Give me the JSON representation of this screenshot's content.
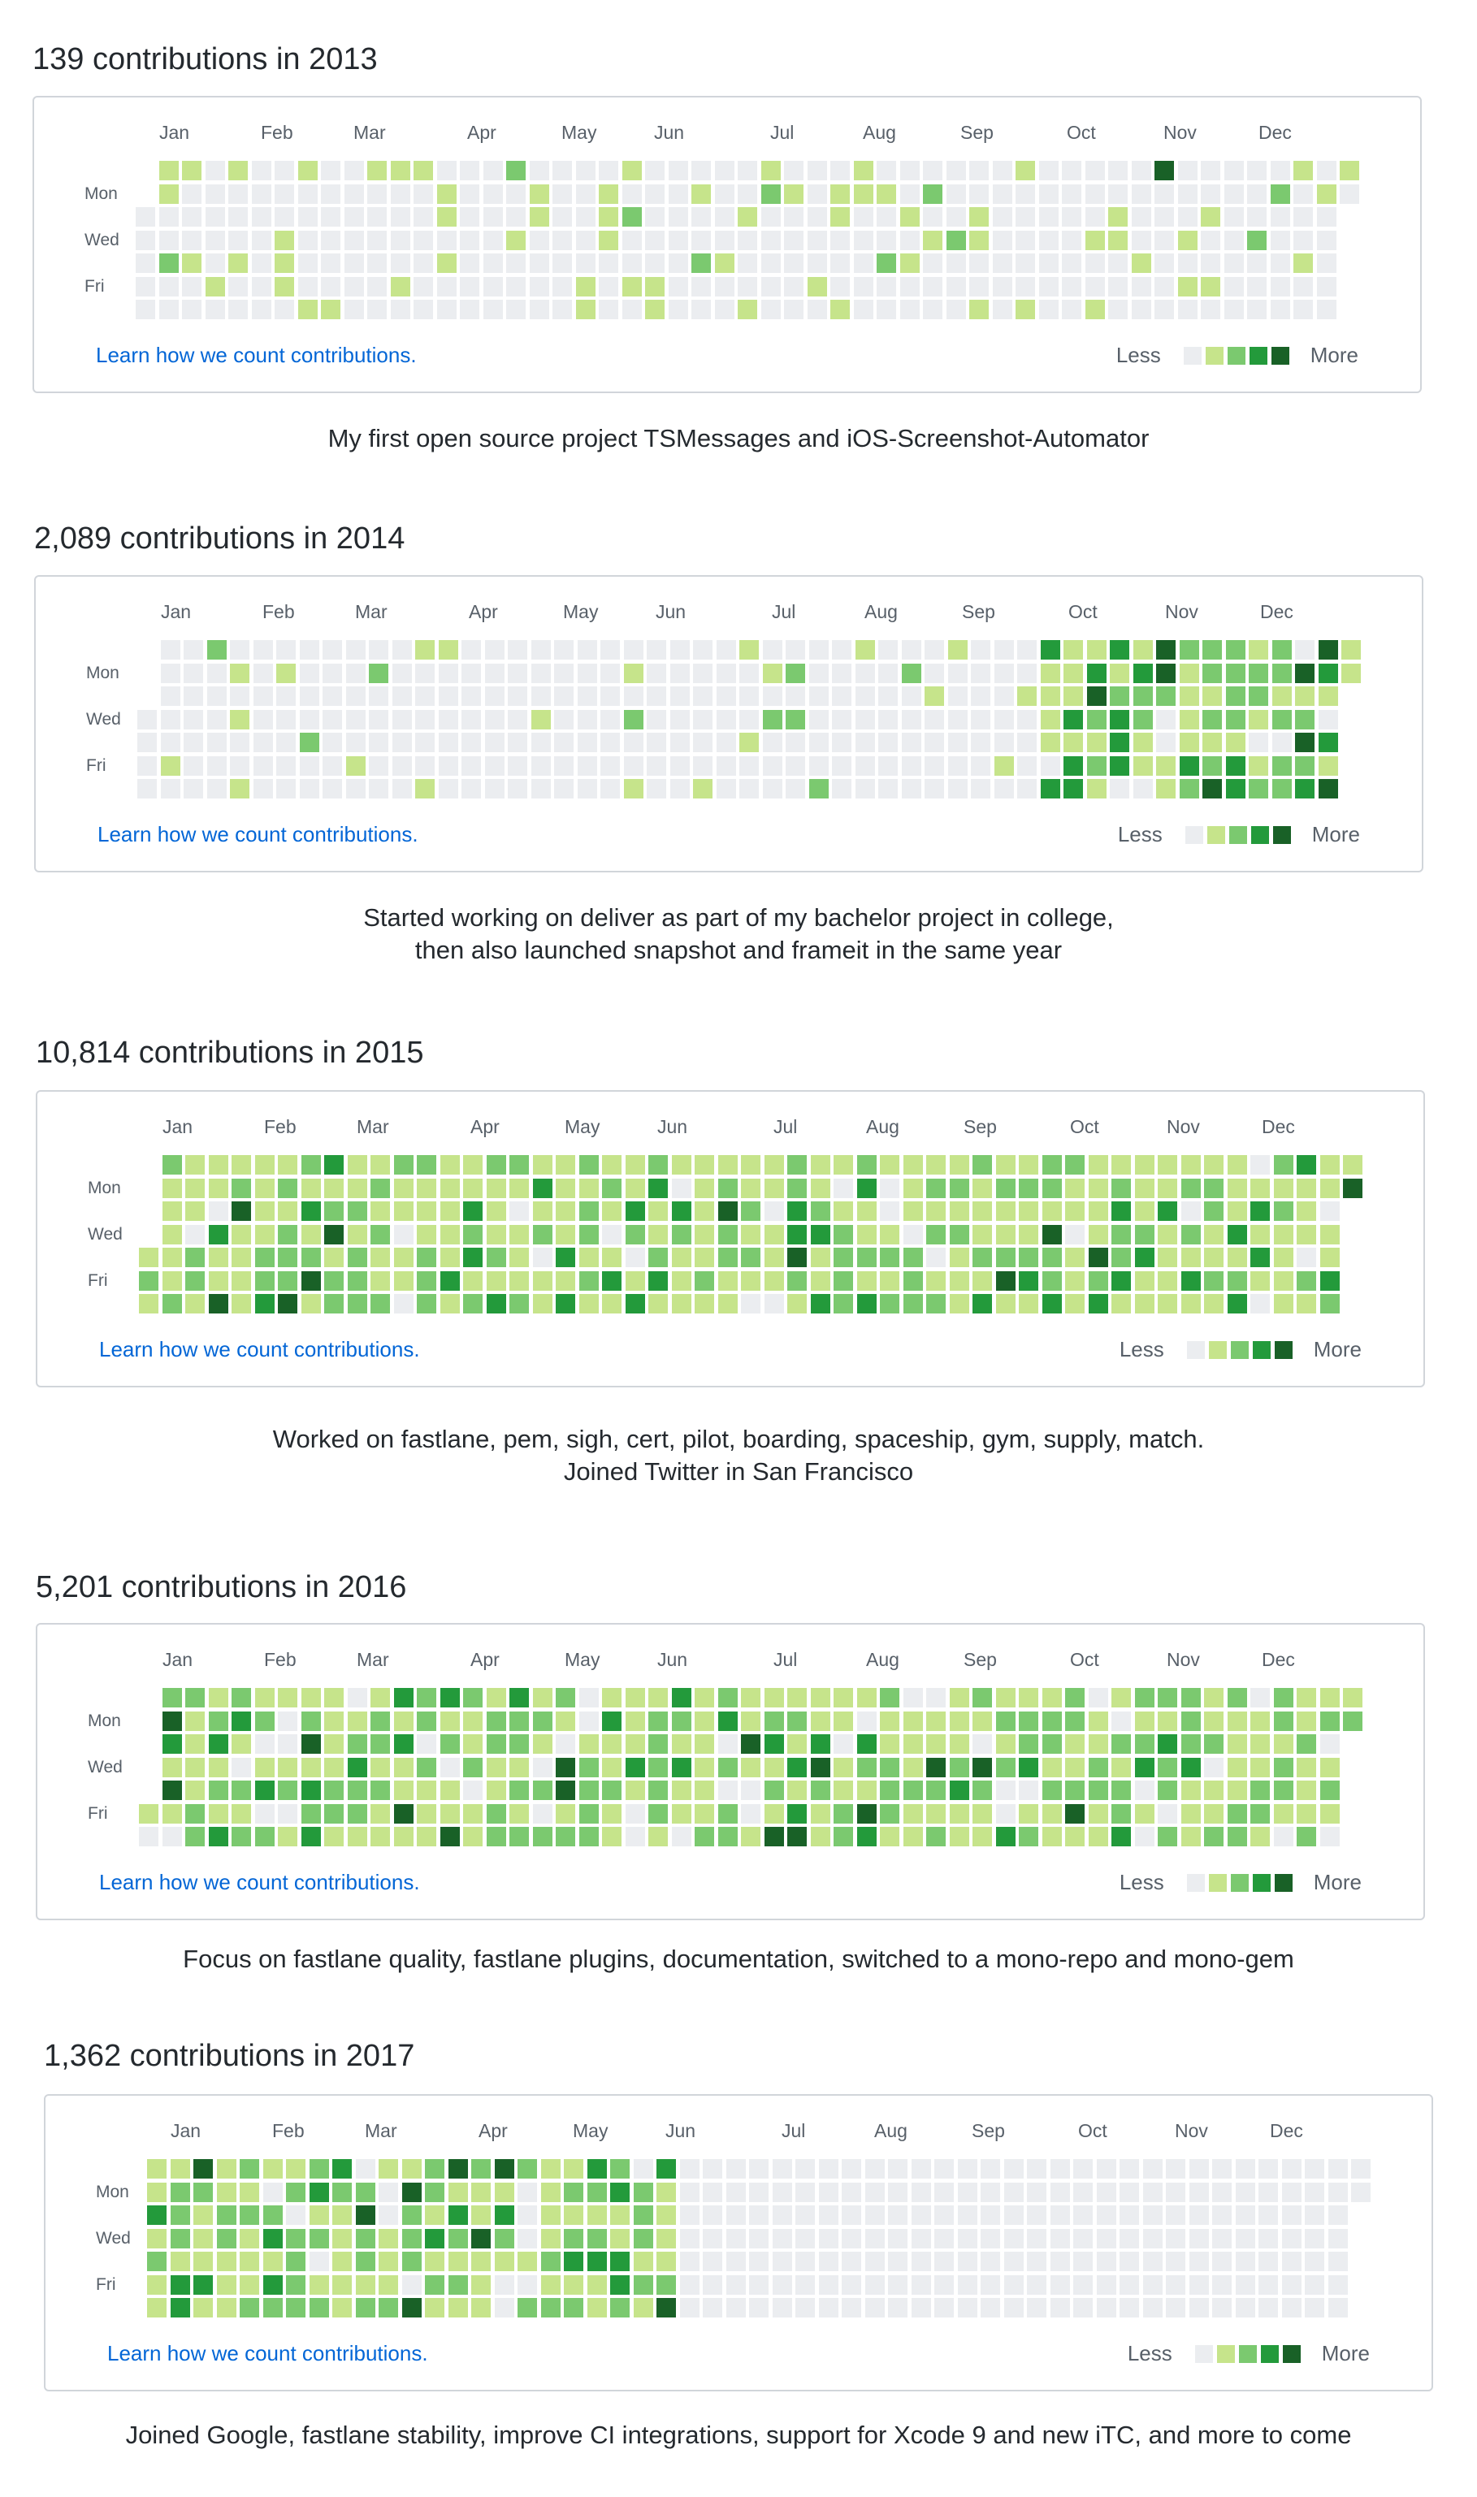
{
  "colors": {
    "levels": [
      "#ebedf0",
      "#c6e48b",
      "#7bc96f",
      "#239a3b",
      "#196127"
    ],
    "link": "#0366d6",
    "border": "#d1d5da"
  },
  "learn_label": "Learn how we count contributions.",
  "legend": {
    "less": "Less",
    "more": "More"
  },
  "day_labels": [
    "Mon",
    "Wed",
    "Fri"
  ],
  "sections": [
    {
      "heading": "139 contributions in 2013",
      "year": 2013,
      "months": [
        "Jan",
        "Feb",
        "Mar",
        "Apr",
        "May",
        "Jun",
        "Jul",
        "Aug",
        "Sep",
        "Oct",
        "Nov",
        "Dec"
      ],
      "caption": [
        "My first open source project TSMessages and iOS-Screenshot-Automator"
      ]
    },
    {
      "heading": "2,089 contributions in 2014",
      "year": 2014,
      "months": [
        "Jan",
        "Feb",
        "Mar",
        "Apr",
        "May",
        "Jun",
        "Jul",
        "Aug",
        "Sep",
        "Oct",
        "Nov",
        "Dec"
      ],
      "caption": [
        "Started working on deliver as part of my bachelor project in college,",
        "then also launched snapshot and frameit in the same year"
      ]
    },
    {
      "heading": "10,814 contributions in 2015",
      "year": 2015,
      "months": [
        "Jan",
        "Feb",
        "Mar",
        "Apr",
        "May",
        "Jun",
        "Jul",
        "Aug",
        "Sep",
        "Oct",
        "Nov",
        "Dec"
      ],
      "caption": [
        "Worked on fastlane, pem, sigh, cert, pilot, boarding, spaceship, gym, supply, match.",
        "Joined Twitter in San Francisco"
      ]
    },
    {
      "heading": "5,201 contributions in 2016",
      "year": 2016,
      "months": [
        "Jan",
        "Feb",
        "Mar",
        "Apr",
        "May",
        "Jun",
        "Jul",
        "Aug",
        "Sep",
        "Oct",
        "Nov",
        "Dec"
      ],
      "caption": [
        "Focus on fastlane quality, fastlane plugins, documentation, switched to a mono-repo and mono-gem"
      ]
    },
    {
      "heading": "1,362 contributions in 2017",
      "year": 2017,
      "months": [
        "Jan",
        "Feb",
        "Mar",
        "Apr",
        "May",
        "Jun",
        "Jul",
        "Aug",
        "Sep",
        "Oct",
        "Nov",
        "Dec"
      ],
      "caption": [
        "Joined Google, fastlane stability, improve CI integrations, support for Xcode 9 and new iTC, and more to come"
      ]
    }
  ]
}
